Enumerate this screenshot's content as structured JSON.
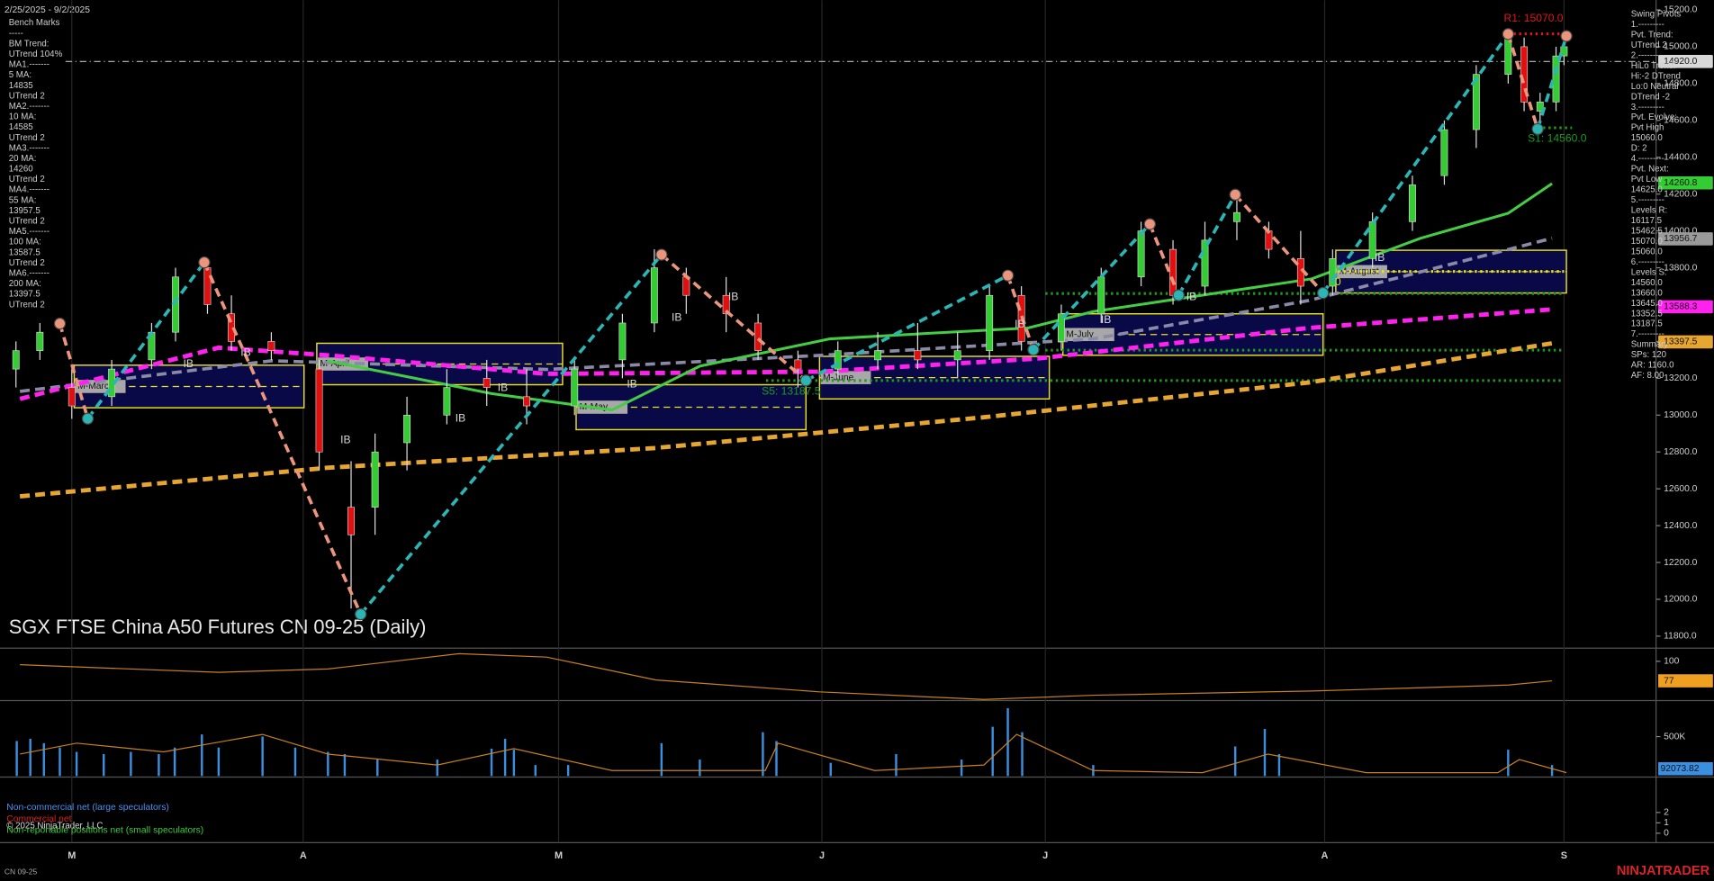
{
  "chart_data": [
    {
      "type": "candlestick",
      "title": "SGX FTSE China A50 Futures CN 09-25 (Daily)",
      "date_range": "2/25/2025 - 9/2/2025",
      "xlim": [
        0,
        200
      ],
      "xticks": [
        {
          "value": 9,
          "label": "M"
        },
        {
          "value": 38,
          "label": "A"
        },
        {
          "value": 70,
          "label": "M"
        },
        {
          "value": 103,
          "label": "J"
        },
        {
          "value": 131,
          "label": "J"
        },
        {
          "value": 166,
          "label": "A"
        },
        {
          "value": 196,
          "label": "S"
        }
      ],
      "ylim": [
        11735,
        15253
      ],
      "yticks": [
        {
          "value": 15200,
          "label": "15200.0"
        },
        {
          "value": 15000,
          "label": "15000.0"
        },
        {
          "value": 14800,
          "label": "14800.0"
        },
        {
          "value": 14600,
          "label": "14600.0"
        },
        {
          "value": 14400,
          "label": "14400.0"
        },
        {
          "value": 14200,
          "label": "14200.0"
        },
        {
          "value": 14000,
          "label": "14000.0"
        },
        {
          "value": 13800,
          "label": "13800.0"
        },
        {
          "value": 13600,
          "label": "13600.0"
        },
        {
          "value": 13400,
          "label": "13400.0"
        },
        {
          "value": 13200,
          "label": "13200.0"
        },
        {
          "value": 13000,
          "label": "13000.0"
        },
        {
          "value": 12800,
          "label": "12800.0"
        },
        {
          "value": 12600,
          "label": "12600.0"
        },
        {
          "value": 12400,
          "label": "12400.0"
        },
        {
          "value": 12200,
          "label": "12200.0"
        },
        {
          "value": 12000,
          "label": "12000.0"
        },
        {
          "value": 11800,
          "label": "11800.0"
        }
      ],
      "up_color": "#33cc33",
      "down_color": "#e01010",
      "candles": {
        "x": [
          2,
          5,
          9,
          14,
          19,
          22,
          26,
          29,
          34,
          40,
          44,
          47,
          51,
          56,
          61,
          66,
          72,
          78,
          82,
          86,
          91,
          95,
          100,
          105,
          110,
          115,
          120,
          124,
          128,
          133,
          138,
          143,
          147,
          151,
          155,
          159,
          163,
          167,
          172,
          177,
          181,
          185,
          189,
          191,
          193,
          195,
          196
        ],
        "open": [
          13250,
          13350,
          13150,
          13100,
          13300,
          13450,
          13800,
          13550,
          13400,
          13250,
          12500,
          12500,
          12850,
          13000,
          13200,
          13100,
          13050,
          13300,
          13500,
          13750,
          13650,
          13500,
          13300,
          13250,
          13300,
          13350,
          13300,
          13350,
          13650,
          13400,
          13550,
          13750,
          13900,
          13700,
          14050,
          14000,
          13850,
          13700,
          13850,
          14050,
          14300,
          14550,
          14850,
          15000,
          14650,
          14700,
          14950
        ],
        "high": [
          13400,
          13500,
          13250,
          13300,
          13500,
          13800,
          13850,
          13650,
          13450,
          13300,
          12750,
          12900,
          13100,
          13250,
          13300,
          13250,
          13300,
          13550,
          13900,
          13800,
          13750,
          13550,
          13350,
          13400,
          13450,
          13500,
          13450,
          13700,
          13700,
          13600,
          13800,
          14050,
          13950,
          14050,
          14200,
          14050,
          14000,
          13900,
          14100,
          14300,
          14600,
          14900,
          15070,
          15050,
          14750,
          15000,
          15060
        ],
        "low": [
          13150,
          13300,
          12980,
          13050,
          13250,
          13400,
          13550,
          13350,
          13300,
          12700,
          11950,
          12350,
          12700,
          12950,
          13050,
          12950,
          13000,
          13200,
          13450,
          13550,
          13450,
          13300,
          13150,
          13200,
          13250,
          13250,
          13200,
          13300,
          13350,
          13350,
          13500,
          13700,
          13600,
          13650,
          13950,
          13850,
          13600,
          13650,
          13800,
          14000,
          14250,
          14450,
          14800,
          14650,
          14550,
          14650,
          14900
        ],
        "close": [
          13350,
          13450,
          13050,
          13250,
          13450,
          13750,
          13600,
          13400,
          13350,
          12800,
          12350,
          12800,
          13000,
          13150,
          13150,
          13050,
          13250,
          13500,
          13800,
          13650,
          13550,
          13350,
          13250,
          13350,
          13350,
          13300,
          13350,
          13650,
          13400,
          13550,
          13750,
          14000,
          13650,
          13950,
          14100,
          13900,
          13700,
          13850,
          14050,
          14250,
          14550,
          14850,
          15050,
          14700,
          14700,
          14950,
          15000
        ]
      },
      "series": [
        {
          "color": "#e7a532",
          "dash": true,
          "width": 4,
          "x": [
            2.5,
            41,
            82,
            123,
            164,
            194.5
          ],
          "values": [
            12559,
            12714,
            12821,
            12987,
            13177,
            13390
          ]
        },
        {
          "color": "#8a8aa8",
          "dash": true,
          "width": 3,
          "x": [
            2.5,
            34,
            68.5,
            103,
            137,
            164,
            194.5
          ],
          "values": [
            13129,
            13295,
            13248,
            13325,
            13414,
            13622,
            13960
          ]
        },
        {
          "color": "#ff22ee",
          "dash": true,
          "width": 4,
          "x": [
            2.5,
            27.4,
            41,
            68.5,
            103,
            130,
            164,
            194.5
          ],
          "values": [
            13088,
            13366,
            13325,
            13224,
            13236,
            13307,
            13473,
            13574
          ]
        },
        {
          "color": "#44cc44",
          "dash": false,
          "width": 2.5,
          "x": [
            41,
            61.6,
            76.7,
            87.7,
            104,
            116.4,
            128.8,
            137,
            150.7,
            164.4,
            178,
            189,
            194.5
          ],
          "values": [
            13295,
            13117,
            13028,
            13266,
            13414,
            13444,
            13473,
            13562,
            13651,
            13740,
            13960,
            14096,
            14257
          ]
        }
      ],
      "swing": {
        "up_color": "#2bb5b5",
        "down_color": "#ec957d",
        "x": [
          7.5,
          11,
          25.6,
          45.2,
          82.9,
          101,
          126.3,
          129.5,
          144.1,
          147.7,
          154.8,
          165.8,
          189,
          192.7,
          196.3
        ],
        "values": [
          13497,
          12981,
          13829,
          11919,
          13871,
          13188,
          13758,
          13355,
          14037,
          13651,
          14197,
          13663,
          15069,
          14553,
          15058
        ]
      },
      "levels": [
        {
          "label": "R1: 15070.0",
          "value": 15070,
          "color": "#e01818",
          "x": [
            189,
            197
          ]
        },
        {
          "label": "S1: 14560.0",
          "value": 14560,
          "color": "#1e9a1e",
          "x": [
            192,
            197
          ]
        },
        {
          "label": "S5: 13187.5",
          "value": 13187.5,
          "color": "#1e9a1e",
          "x": [
            96,
            196
          ]
        },
        {
          "label": null,
          "value": 13660,
          "color": "#1e9a1e",
          "x": [
            131,
            196
          ]
        },
        {
          "label": null,
          "value": 13352.5,
          "color": "#1e9a1e",
          "x": [
            131,
            196
          ]
        },
        {
          "label": "F0",
          "value": 13780,
          "color": "#e8e020",
          "x": [
            167,
            196
          ]
        }
      ],
      "month_ranges": [
        {
          "label": "M-March",
          "x": [
            9.3,
            38.1
          ],
          "y": [
            13040,
            13271
          ]
        },
        {
          "label": "M-April",
          "x": [
            39.7,
            70.5
          ],
          "y": [
            13165,
            13390
          ]
        },
        {
          "label": "M-May",
          "x": [
            72.2,
            101
          ],
          "y": [
            12921,
            13165
          ]
        },
        {
          "label": "M-June",
          "x": [
            102.7,
            131.5
          ],
          "y": [
            13088,
            13319
          ]
        },
        {
          "label": "M-July",
          "x": [
            133.2,
            165.8
          ],
          "y": [
            13325,
            13550
          ]
        },
        {
          "label": "M-August",
          "x": [
            167.4,
            196.3
          ],
          "y": [
            13663,
            13895
          ]
        }
      ],
      "ib_labels": [
        {
          "label": "IB",
          "x": 23.6,
          "y": 13277
        },
        {
          "label": "IB",
          "x": 30.8,
          "y": 13337
        },
        {
          "label": "IB",
          "x": 43.3,
          "y": 12862
        },
        {
          "label": "IB",
          "x": 57.7,
          "y": 12981
        },
        {
          "label": "IB",
          "x": 63,
          "y": 13147
        },
        {
          "label": "IB",
          "x": 79.2,
          "y": 13165
        },
        {
          "label": "IB",
          "x": 84.8,
          "y": 13527
        },
        {
          "label": "IB",
          "x": 91.9,
          "y": 13639
        },
        {
          "label": "IB",
          "x": 127.8,
          "y": 13491
        },
        {
          "label": "IB",
          "x": 138.6,
          "y": 13515
        },
        {
          "label": "IB",
          "x": 149.3,
          "y": 13639
        },
        {
          "label": "IB",
          "x": 172.9,
          "y": 13853
        }
      ],
      "price_tags": [
        {
          "value": 14920,
          "label": "14920.0",
          "color": "#d8d8d8",
          "line": true
        },
        {
          "value": 14260.8,
          "label": "14260.8",
          "color": "#33cc33",
          "line": false
        },
        {
          "value": 13956.7,
          "label": "13956.7",
          "color": "#9a9a9a",
          "line": false
        },
        {
          "value": 13588.3,
          "label": "13588.3",
          "color": "#ff22ee",
          "line": false
        },
        {
          "value": 13397.5,
          "label": "13397.5",
          "color": "#e7a532",
          "line": false
        }
      ],
      "benchmark_notes": [
        "Bench Marks",
        "-----",
        "BM Trend:",
        "UTrend 104%",
        "MA1.-------",
        "5 MA:",
        "14835",
        "UTrend 2",
        "MA2.-------",
        "10 MA:",
        "14585",
        "UTrend 2",
        "MA3.-------",
        "20 MA:",
        "14260",
        "UTrend 2",
        "MA4.-------",
        "55 MA:",
        "13957.5",
        "UTrend 2",
        "MA5.-------",
        "100 MA:",
        "13587.5",
        "UTrend 2",
        "MA6.-------",
        "200 MA:",
        "13397.5",
        "UTrend 2"
      ],
      "swing_pivot_notes": [
        "Swing Pivots",
        "1.---------",
        "Pvt. Trend:",
        "UTrend 2",
        "2.---------",
        "HiLo Trend:",
        "Hi:-2 DTrend",
        "Lo:0 Neutral",
        "DTrend -2",
        "3.---------",
        "Pvt. Evolve:",
        "Pvt High",
        "15060.0",
        "D: 2",
        "4.---------",
        "Pvt. Next:",
        "Pvt Low",
        "14625.0",
        "5.---------",
        "Levels R:",
        "16117.5",
        "15462.5",
        "15070.0",
        "15060.0",
        "6.---------",
        "Levels S:",
        "14560.0",
        "13660.0",
        "13645.0",
        "13352.5",
        "13187.5",
        "7.---------",
        "Summary",
        "SPs: 120",
        "AR: 1160.0",
        "AF: 8.00"
      ]
    },
    {
      "type": "line",
      "ylim": [
        55,
        113
      ],
      "yticks": [
        100
      ],
      "color": "#c8801e",
      "x": [
        2.5,
        27.4,
        41.1,
        57.5,
        68.5,
        82.2,
        102.7,
        123.3,
        137,
        164.4,
        189,
        194.5
      ],
      "values": [
        96,
        87,
        91,
        109,
        105,
        78,
        64,
        55,
        60,
        65,
        72,
        77
      ],
      "value_tag": 77,
      "tag_color": "#f0a020"
    },
    {
      "type": "bar",
      "ylim": [
        0,
        930000
      ],
      "yticks": [
        {
          "value": 500000,
          "label": "500K"
        }
      ],
      "color": "#3b8fe0",
      "x": [
        2.1,
        3.8,
        5.5,
        7.5,
        9.6,
        13,
        16.4,
        19.9,
        21.9,
        25.3,
        27.4,
        32.9,
        37,
        41.1,
        43.2,
        47.3,
        54.8,
        61.6,
        63.3,
        64.4,
        67.1,
        71.2,
        82.9,
        87.7,
        95.6,
        97.3,
        104.1,
        112.3,
        120.5,
        124.4,
        126.3,
        128.1,
        137,
        154.8,
        158.5,
        160.3,
        189,
        194.5
      ],
      "values": [
        444000,
        472000,
        417000,
        361000,
        306000,
        278000,
        306000,
        278000,
        361000,
        528000,
        361000,
        500000,
        361000,
        306000,
        278000,
        208000,
        208000,
        347000,
        472000,
        333000,
        139000,
        139000,
        417000,
        208000,
        556000,
        444000,
        167000,
        278000,
        208000,
        625000,
        861000,
        556000,
        139000,
        375000,
        597000,
        278000,
        333000,
        139000
      ],
      "average": {
        "color": "#c8801e",
        "x": [
          2.5,
          9.6,
          20.5,
          32.9,
          41.1,
          54.8,
          64.4,
          76.7,
          95.9,
          97.5,
          109.6,
          123.3,
          127.4,
          137,
          150.7,
          158.9,
          171.2,
          187.7,
          190.4,
          196.3
        ],
        "values": [
          278000,
          417000,
          306000,
          528000,
          278000,
          139000,
          347000,
          69000,
          69000,
          417000,
          69000,
          139000,
          528000,
          69000,
          42000,
          278000,
          42000,
          42000,
          208000,
          42000
        ]
      },
      "value_tag": 92073.82,
      "tag_color": "#3b8fe0"
    },
    {
      "type": "legend",
      "ylim": [
        -0.8,
        5.2
      ],
      "yticks": [
        0,
        1,
        2
      ],
      "legend": [
        {
          "name": "Non-commercial net (large speculators)",
          "color": "#4f8ff0"
        },
        {
          "name": "Commercial net",
          "color": "#e02020"
        },
        {
          "name": "Non-reportable positions net (small speculators)",
          "color": "#3ccc3c"
        }
      ]
    }
  ],
  "copyright": "© 2025 NinjaTrader, LLC",
  "instrument": "CN 09-25",
  "brand": "NINJATRADER"
}
